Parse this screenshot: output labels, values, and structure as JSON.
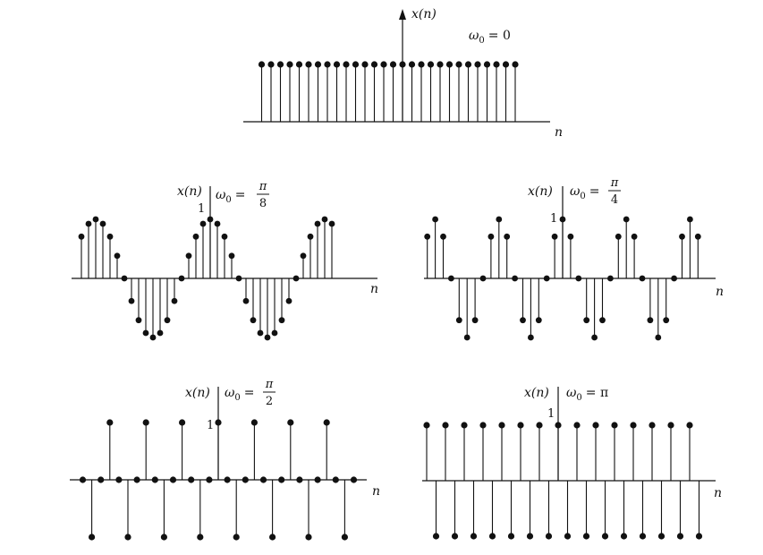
{
  "chart_data": [
    {
      "type": "stem",
      "title": "ω0 = 0",
      "omega_label": "ω",
      "omega_sub": "0",
      "omega_rhs": "= 0",
      "ylabel": "x(n)",
      "xlabel": "n",
      "amplitude_label": "",
      "n_range": [
        -15,
        12
      ],
      "omega": 0,
      "values_rule": "x(n) = cos(0·n) = 1 for all n"
    },
    {
      "type": "stem",
      "title": "ω0 = π/8",
      "omega_label": "ω",
      "omega_sub": "0",
      "omega_num": "π",
      "omega_den": "8",
      "ylabel": "x(n)",
      "xlabel": "n",
      "amplitude_label": "1",
      "n_range": [
        -18,
        17
      ],
      "omega": 0.39269908,
      "values_rule": "x(n) = cos(πn/8)"
    },
    {
      "type": "stem",
      "title": "ω0 = π/4",
      "omega_label": "ω",
      "omega_sub": "0",
      "omega_num": "π",
      "omega_den": "4",
      "ylabel": "x(n)",
      "xlabel": "n",
      "amplitude_label": "1",
      "n_range": [
        -17,
        17
      ],
      "omega": 0.78539816,
      "values_rule": "x(n) = cos(πn/4)"
    },
    {
      "type": "stem",
      "title": "ω0 = π/2",
      "omega_label": "ω",
      "omega_sub": "0",
      "omega_num": "π",
      "omega_den": "2",
      "ylabel": "x(n)",
      "xlabel": "n",
      "amplitude_label": "1",
      "n_range": [
        -15,
        15
      ],
      "omega": 1.57079633,
      "values_rule": "x(n) = cos(πn/2)"
    },
    {
      "type": "stem",
      "title": "ω0 = π",
      "omega_label": "ω",
      "omega_sub": "0",
      "omega_rhs": "= π",
      "ylabel": "x(n)",
      "xlabel": "n",
      "amplitude_label": "1",
      "n_range": [
        -14,
        15
      ],
      "omega": 3.14159265,
      "values_rule": "x(n) = cos(πn) = (-1)^n"
    }
  ]
}
